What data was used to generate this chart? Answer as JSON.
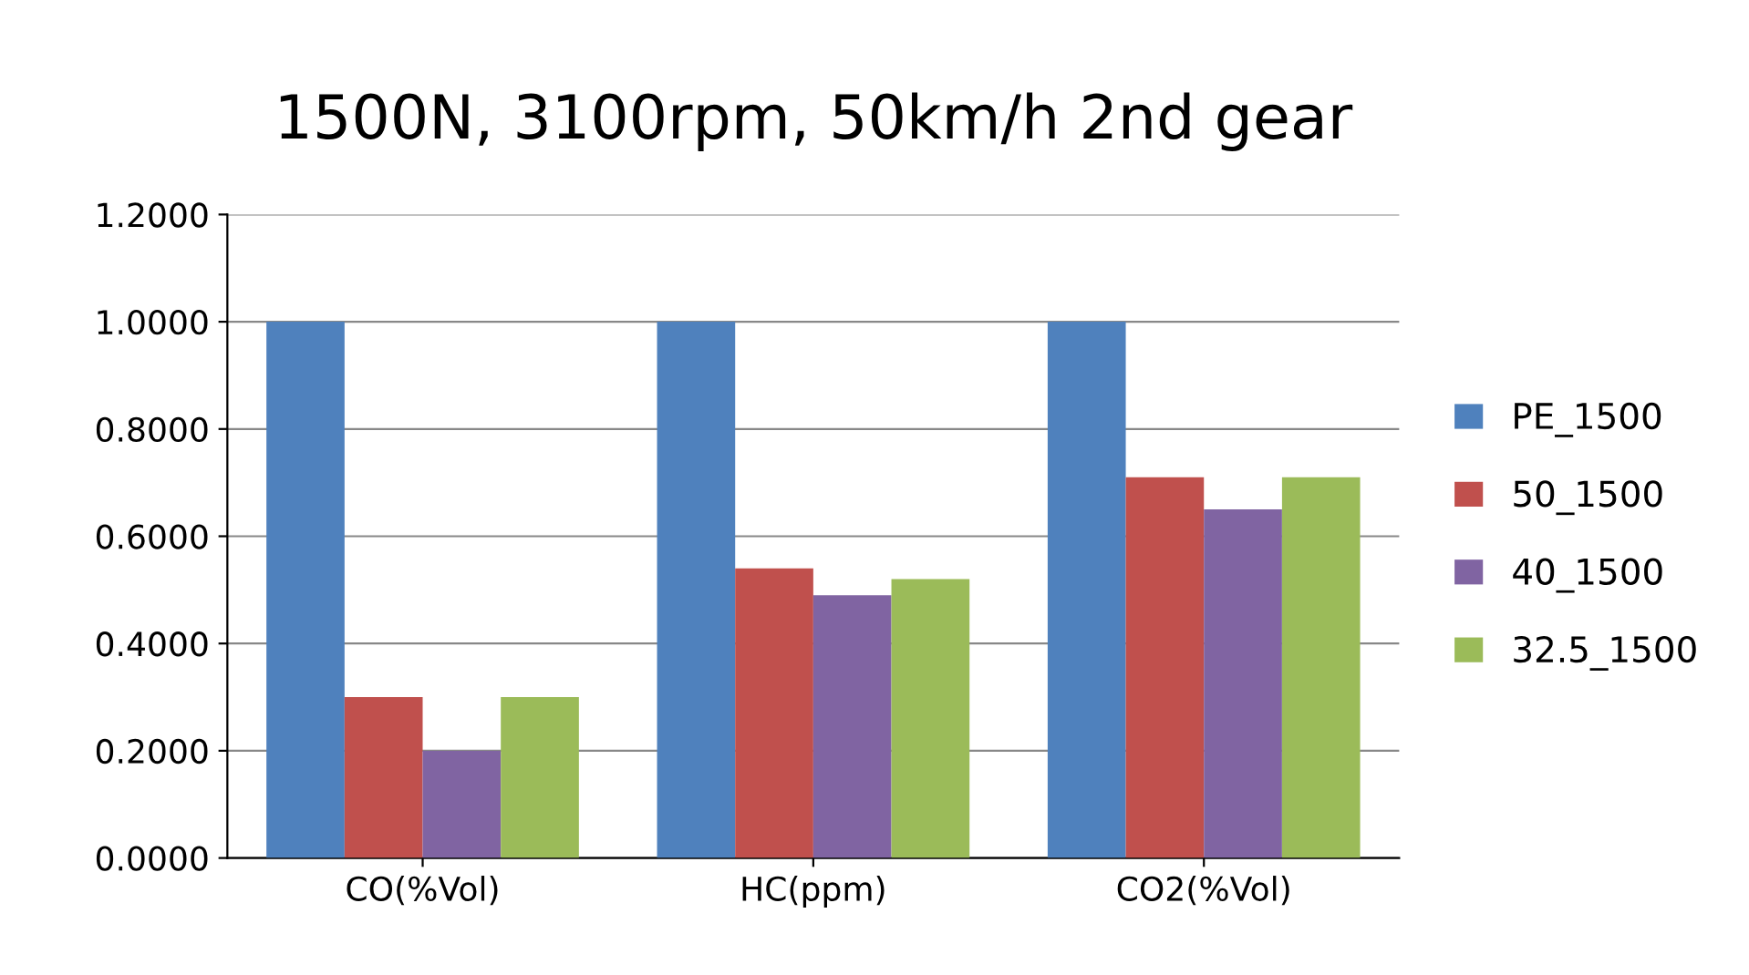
{
  "chart_data": {
    "type": "bar",
    "title": "1500N, 3100rpm, 50km/h 2nd gear",
    "categories": [
      "CO(%Vol)",
      "HC(ppm)",
      "CO2(%Vol)"
    ],
    "series": [
      {
        "name": "PE_1500",
        "color": "#4f81bd",
        "values": [
          1.0,
          1.0,
          1.0
        ]
      },
      {
        "name": "50_1500",
        "color": "#c0504d",
        "values": [
          0.3,
          0.54,
          0.71
        ]
      },
      {
        "name": "40_1500",
        "color": "#8064a2",
        "values": [
          0.2,
          0.49,
          0.65
        ]
      },
      {
        "name": "32.5_1500",
        "color": "#9bbb59",
        "values": [
          0.3,
          0.52,
          0.71
        ]
      }
    ],
    "ylim": [
      0,
      1.2
    ],
    "yticks": [
      {
        "value": 0,
        "label": "0.0000"
      },
      {
        "value": 0.2,
        "label": "0.2000"
      },
      {
        "value": 0.4,
        "label": "0.4000"
      },
      {
        "value": 0.6,
        "label": "0.6000"
      },
      {
        "value": 0.8,
        "label": "0.8000"
      },
      {
        "value": 1.0,
        "label": "1.0000"
      },
      {
        "value": 1.2,
        "label": "1.2000"
      }
    ],
    "grid": "y",
    "legend": "right"
  }
}
